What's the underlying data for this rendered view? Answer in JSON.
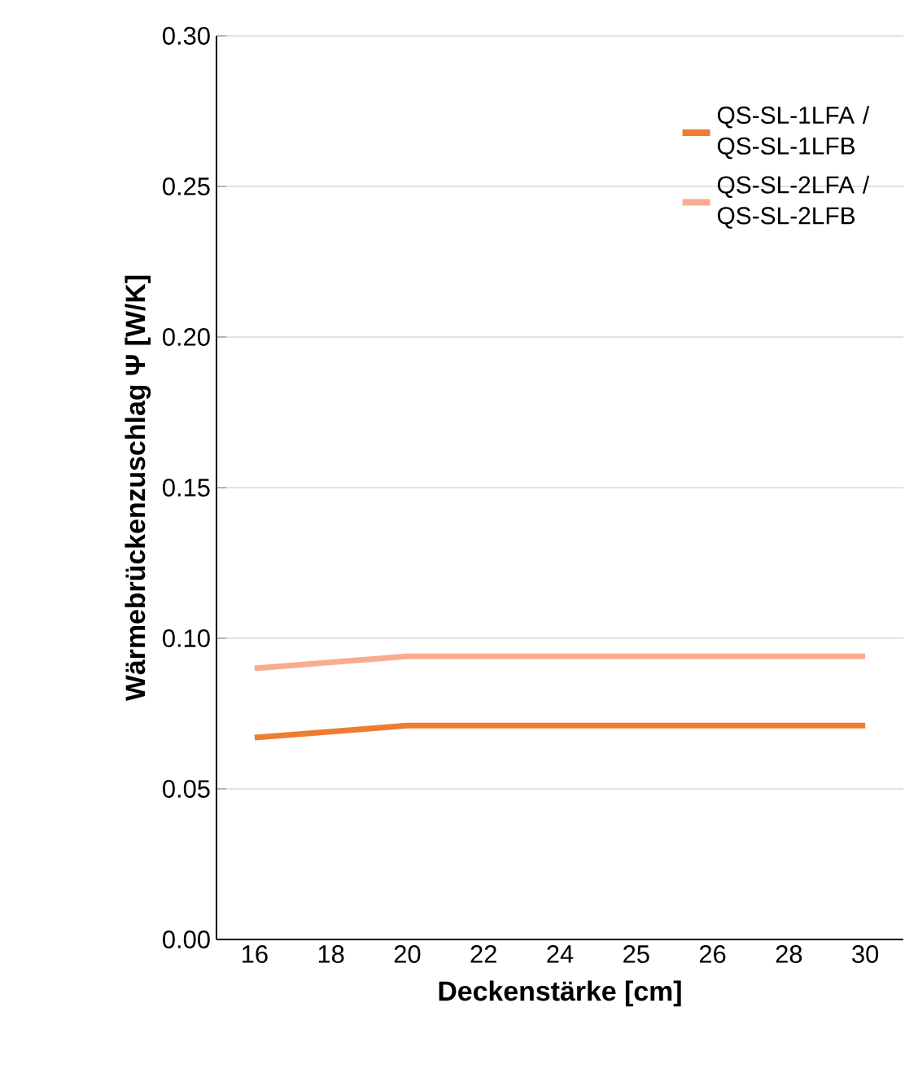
{
  "chart_data": {
    "type": "line",
    "xlabel": "Deckenstärke [cm]",
    "ylabel": "Wärmebrückenzuschlag Ψ [W/K]",
    "categories": [
      "16",
      "18",
      "20",
      "22",
      "24",
      "25",
      "26",
      "28",
      "30"
    ],
    "series": [
      {
        "name": "QS-SL-1LFA / QS-SL-1LFB",
        "color": "#ed7d31",
        "values": [
          0.067,
          0.069,
          0.071,
          0.071,
          0.071,
          0.071,
          0.071,
          0.071,
          0.071
        ]
      },
      {
        "name": "QS-SL-2LFA / QS-SL-2LFB",
        "color": "#f8ad8e",
        "values": [
          0.09,
          0.092,
          0.094,
          0.094,
          0.094,
          0.094,
          0.094,
          0.094,
          0.094
        ]
      }
    ],
    "ylim": [
      0,
      0.3
    ],
    "yticks": [
      {
        "value": 0,
        "label": "0.00"
      },
      {
        "value": 0.05,
        "label": "0.05"
      },
      {
        "value": 0.1,
        "label": "0.10"
      },
      {
        "value": 0.15,
        "label": "0.15"
      },
      {
        "value": 0.2,
        "label": "0.20"
      },
      {
        "value": 0.25,
        "label": "0.25"
      },
      {
        "value": 0.3,
        "label": "0.30"
      }
    ],
    "grid": "y",
    "legend": "top right",
    "marker": "none",
    "line_style": "solid"
  }
}
